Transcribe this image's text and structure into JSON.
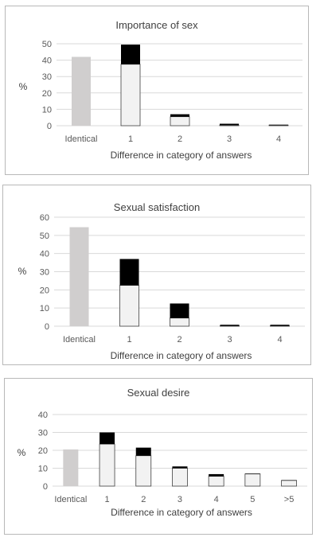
{
  "chart_data": [
    {
      "type": "bar",
      "stacked": true,
      "title": "Importance of sex",
      "xlabel": "Difference in category of answers",
      "ylabel": "%",
      "ylim": [
        0,
        50
      ],
      "yticks": [
        0,
        10,
        20,
        30,
        40,
        50
      ],
      "grid": true,
      "categories": [
        "Identical",
        "1",
        "2",
        "3",
        "4"
      ],
      "series": [
        {
          "color": "#d0cece",
          "values": [
            42,
            0,
            0,
            0,
            0
          ]
        },
        {
          "color": "#f2f2f2",
          "values": [
            0,
            37.5,
            5.5,
            0.4,
            0.4
          ]
        },
        {
          "color": "#000000",
          "values": [
            0,
            12,
            1.5,
            0.8,
            0.2
          ]
        }
      ]
    },
    {
      "type": "bar",
      "stacked": true,
      "title": "Sexual satisfaction",
      "xlabel": "Difference in category of answers",
      "ylabel": "%",
      "ylim": [
        0,
        60
      ],
      "yticks": [
        0,
        10,
        20,
        30,
        40,
        50,
        60
      ],
      "grid": true,
      "categories": [
        "Identical",
        "1",
        "2",
        "3",
        "4"
      ],
      "series": [
        {
          "color": "#d0cece",
          "values": [
            54.5,
            0,
            0,
            0,
            0
          ]
        },
        {
          "color": "#f2f2f2",
          "values": [
            0,
            22.5,
            4.5,
            0.2,
            0.2
          ]
        },
        {
          "color": "#000000",
          "values": [
            0,
            14.5,
            8,
            0.6,
            0.6
          ]
        }
      ]
    },
    {
      "type": "bar",
      "stacked": true,
      "title": "Sexual desire",
      "xlabel": "Difference in category of answers",
      "ylabel": "%",
      "ylim": [
        0,
        40
      ],
      "yticks": [
        0,
        10,
        20,
        30,
        40
      ],
      "grid": true,
      "categories": [
        "Identical",
        "1",
        "2",
        "3",
        "4",
        "5",
        ">5"
      ],
      "series": [
        {
          "color": "#d0cece",
          "values": [
            20.5,
            0,
            0,
            0,
            0,
            0,
            0
          ]
        },
        {
          "color": "#f2f2f2",
          "values": [
            0,
            23.5,
            17,
            10,
            5.5,
            6.8,
            3.2
          ]
        },
        {
          "color": "#000000",
          "values": [
            0,
            6.5,
            4.5,
            1,
            1.2,
            0.2,
            0.1
          ]
        }
      ]
    }
  ]
}
